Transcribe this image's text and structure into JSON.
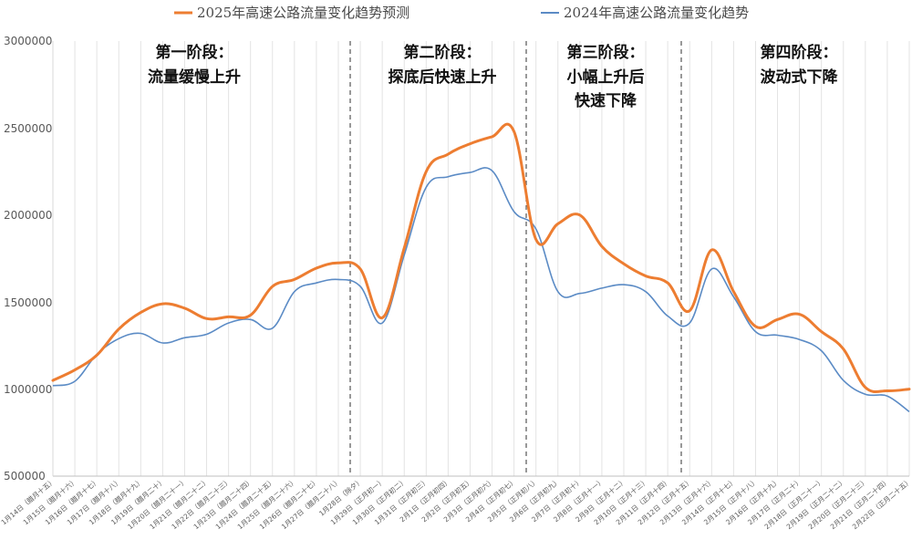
{
  "chart_data": {
    "type": "line",
    "title": "",
    "xlabel": "",
    "ylabel": "",
    "ylim": [
      500000,
      3000000
    ],
    "yticks": [
      500000,
      1000000,
      1500000,
      2000000,
      2500000,
      3000000
    ],
    "ytick_labels": [
      "500000",
      "1000000",
      "1500000",
      "2000000",
      "2500000",
      "3000000"
    ],
    "grid": "vertical",
    "legend_position": "top",
    "categories": [
      "1月14日（腊月十五）",
      "1月15日（腊月十六）",
      "1月16日（腊月十七）",
      "1月17日（腊月十八）",
      "1月18日（腊月十九）",
      "1月19日（腊月二十）",
      "1月20日（腊月二十一）",
      "1月21日（腊月二十二）",
      "1月22日（腊月二十三）",
      "1月23日（腊月二十四）",
      "1月24日（腊月二十五）",
      "1月25日（腊月二十六）",
      "1月26日（腊月二十七）",
      "1月27日（腊月二十八）",
      "1月28日（除夕）",
      "1月29日（正月初一）",
      "1月30日（正月初二）",
      "1月31日（正月初三）",
      "2月1日（正月初四）",
      "2月2日（正月初五）",
      "2月3日（正月初六）",
      "2月4日（正月初七）",
      "2月5日（正月初八）",
      "2月6日（正月初九）",
      "2月7日（正月初十）",
      "2月8日（正月十一）",
      "2月9日（正月十二）",
      "2月10日（正月十三）",
      "2月11日（正月十四）",
      "2月12日（正月十五）",
      "2月13日（正月十六）",
      "2月14日（正月十七）",
      "2月15日（正月十八）",
      "2月16日（正月十九）",
      "2月17日（正月二十）",
      "2月18日（正月二十一）",
      "2月19日（正月二十二）",
      "2月20日（正月二十三）",
      "2月21日（正月二十四）",
      "2月22日（正月二十五）"
    ],
    "series": [
      {
        "name": "2025年高速公路流量变化趋势预测",
        "color": "#ED7D31",
        "values": [
          1050000,
          1110000,
          1195000,
          1345000,
          1440000,
          1490000,
          1465000,
          1405000,
          1415000,
          1425000,
          1590000,
          1630000,
          1695000,
          1725000,
          1690000,
          1410000,
          1810000,
          2250000,
          2350000,
          2410000,
          2450000,
          2480000,
          1860000,
          1950000,
          2000000,
          1820000,
          1720000,
          1650000,
          1610000,
          1450000,
          1800000,
          1560000,
          1360000,
          1400000,
          1430000,
          1330000,
          1230000,
          1010000,
          990000,
          1000000
        ]
      },
      {
        "name": "2024年高速公路流量变化趋势",
        "color": "#5B8BC5",
        "values": [
          1020000,
          1045000,
          1200000,
          1290000,
          1320000,
          1265000,
          1295000,
          1315000,
          1380000,
          1400000,
          1350000,
          1560000,
          1610000,
          1630000,
          1590000,
          1380000,
          1770000,
          2160000,
          2220000,
          2245000,
          2255000,
          2020000,
          1920000,
          1560000,
          1550000,
          1580000,
          1600000,
          1560000,
          1420000,
          1380000,
          1690000,
          1530000,
          1330000,
          1310000,
          1285000,
          1220000,
          1050000,
          970000,
          960000,
          870000
        ]
      }
    ],
    "phases": [
      {
        "lines": [
          "第一阶段：",
          "流量缓慢上升"
        ]
      },
      {
        "lines": [
          "第二阶段：",
          "探底后快速上升"
        ]
      },
      {
        "lines": [
          "第三阶段：",
          "小幅上升后",
          "快速下降"
        ]
      },
      {
        "lines": [
          "第四阶段：",
          "波动式下降"
        ]
      }
    ]
  }
}
